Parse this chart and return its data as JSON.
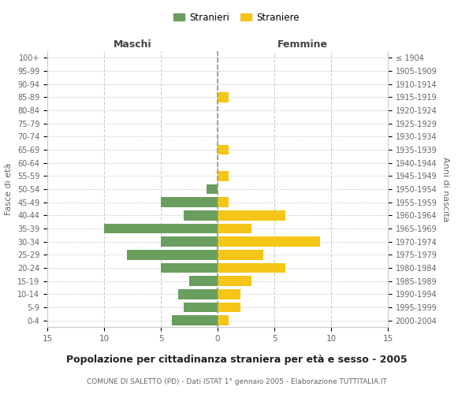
{
  "age_groups": [
    "100+",
    "95-99",
    "90-94",
    "85-89",
    "80-84",
    "75-79",
    "70-74",
    "65-69",
    "60-64",
    "55-59",
    "50-54",
    "45-49",
    "40-44",
    "35-39",
    "30-34",
    "25-29",
    "20-24",
    "15-19",
    "10-14",
    "5-9",
    "0-4"
  ],
  "birth_years": [
    "≤ 1904",
    "1905-1909",
    "1910-1914",
    "1915-1919",
    "1920-1924",
    "1925-1929",
    "1930-1934",
    "1935-1939",
    "1940-1944",
    "1945-1949",
    "1950-1954",
    "1955-1959",
    "1960-1964",
    "1965-1969",
    "1970-1974",
    "1975-1979",
    "1980-1984",
    "1985-1989",
    "1990-1994",
    "1995-1999",
    "2000-2004"
  ],
  "maschi": [
    0,
    0,
    0,
    0,
    0,
    0,
    0,
    0,
    0,
    0,
    1,
    5,
    3,
    10,
    5,
    8,
    5,
    2.5,
    3.5,
    3,
    4
  ],
  "femmine": [
    0,
    0,
    0,
    1,
    0,
    0,
    0,
    1,
    0,
    1,
    0,
    1,
    6,
    3,
    9,
    4,
    6,
    3,
    2,
    2,
    1
  ],
  "male_color": "#6a9e5e",
  "female_color": "#f5c518",
  "title": "Popolazione per cittadinanza straniera per età e sesso - 2005",
  "subtitle": "COMUNE DI SALETTO (PD) - Dati ISTAT 1° gennaio 2005 - Elaborazione TUTTITALIA.IT",
  "xlabel_left": "Maschi",
  "xlabel_right": "Femmine",
  "ylabel_left": "Fasce di età",
  "ylabel_right": "Anni di nascita",
  "legend_male": "Stranieri",
  "legend_female": "Straniere",
  "xlim": 15,
  "bg_color": "#ffffff",
  "grid_color": "#cccccc",
  "bar_height": 0.75
}
